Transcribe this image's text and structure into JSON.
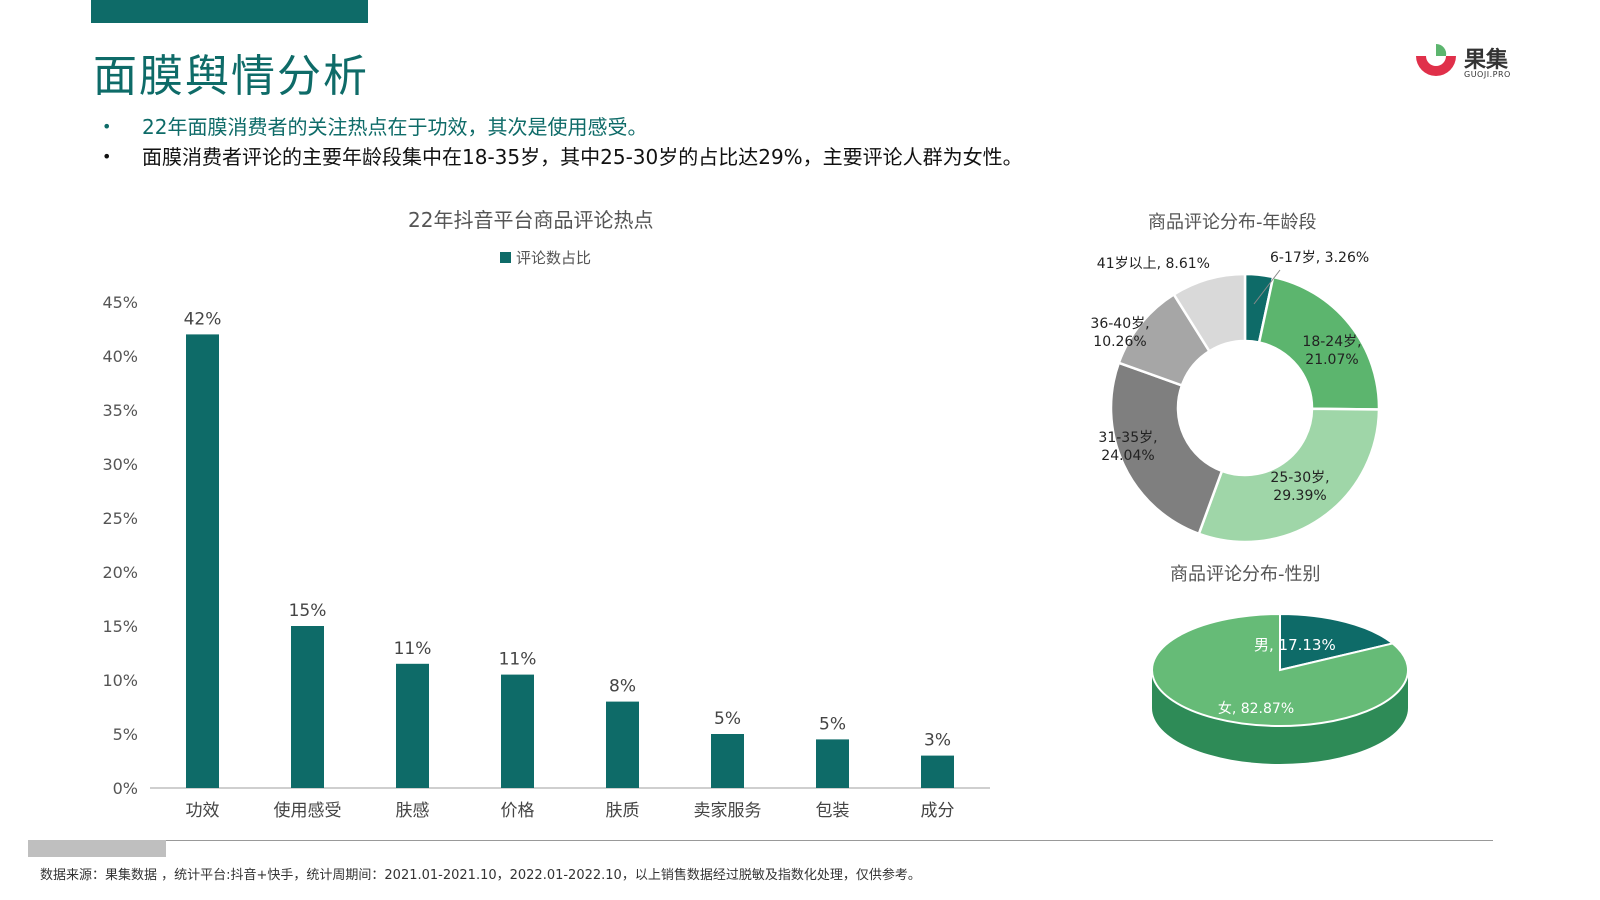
{
  "header": {
    "title": "面膜舆情分析",
    "bullets": [
      "22年面膜消费者的关注热点在于功效，其次是使用感受。",
      "面膜消费者评论的主要年龄段集中在18-35岁，其中25-30岁的占比达29%，主要评论人群为女性。"
    ]
  },
  "logo": {
    "name": "果集",
    "sub": "GUOJI.PRO"
  },
  "footer": {
    "source": "数据来源：果集数据 ，统计平台:抖音+快手，统计周期间：2021.01-2021.10，2022.01-2022.10，以上销售数据经过脱敏及指数化处理，仅供参考。"
  },
  "colors": {
    "brand": "#0e6b68",
    "bar": "#0e6b68"
  },
  "chart_data": [
    {
      "type": "bar",
      "title": "22年抖音平台商品评论热点",
      "categories": [
        "功效",
        "使用感受",
        "肤感",
        "价格",
        "肤质",
        "卖家服务",
        "包装",
        "成分"
      ],
      "series": [
        {
          "name": "评论数占比",
          "values": [
            42,
            15,
            11.5,
            10.5,
            8,
            5,
            4.5,
            3
          ]
        }
      ],
      "data_labels": [
        "42%",
        "15%",
        "11%",
        "11%",
        "8%",
        "5%",
        "5%",
        "3%"
      ],
      "y_ticks": [
        "0%",
        "5%",
        "10%",
        "15%",
        "20%",
        "25%",
        "30%",
        "35%",
        "40%",
        "45%"
      ],
      "ylim": [
        0,
        45
      ],
      "legend": "top-center",
      "grid": false
    },
    {
      "type": "pie",
      "title": "商品评论分布-年龄段",
      "donut": true,
      "slices": [
        {
          "label": "6-17岁,",
          "value": 3.26,
          "pct": "3.26%",
          "color": "#0e6b68"
        },
        {
          "label": "18-24岁,",
          "value": 21.07,
          "pct": "21.07%",
          "color": "#5cb56e"
        },
        {
          "label": "25-30岁,",
          "value": 29.39,
          "pct": "29.39%",
          "color": "#9fd6a8"
        },
        {
          "label": "31-35岁,",
          "value": 24.04,
          "pct": "24.04%",
          "color": "#7f7f7f"
        },
        {
          "label": "36-40岁,",
          "value": 10.26,
          "pct": "10.26%",
          "color": "#a6a6a6"
        },
        {
          "label": "41岁以上,",
          "value": 8.61,
          "pct": "8.61%",
          "color": "#d9d9d9"
        }
      ]
    },
    {
      "type": "pie",
      "title": "商品评论分布-性别",
      "slices": [
        {
          "label": "男,",
          "value": 17.13,
          "pct": "17.13%",
          "color": "#0e6b68"
        },
        {
          "label": "女,",
          "value": 82.87,
          "pct": "82.87%",
          "color": "#66bb77"
        }
      ]
    }
  ]
}
